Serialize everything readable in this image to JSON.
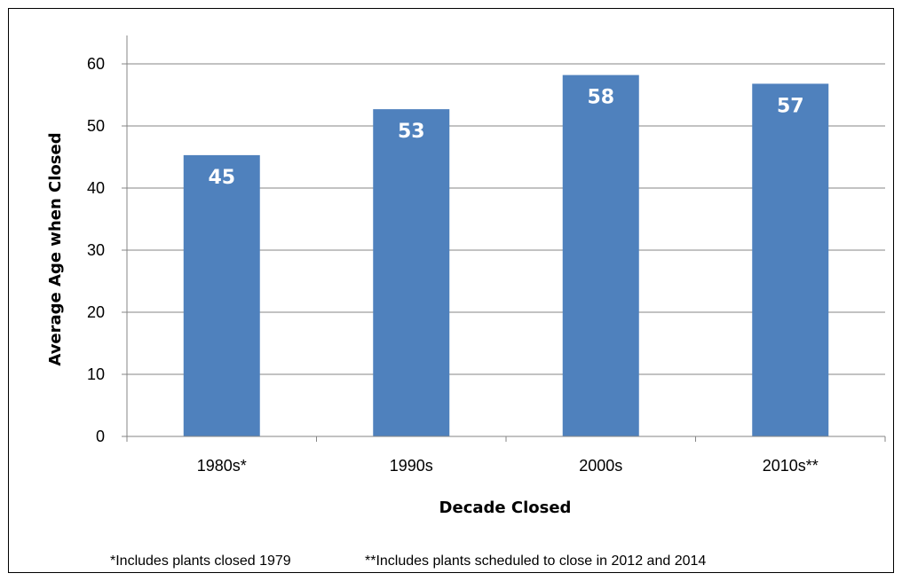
{
  "chart_data": {
    "type": "bar",
    "categories": [
      "1980s*",
      "1990s",
      "2000s",
      "2010s**"
    ],
    "values": [
      45.3,
      52.7,
      58.2,
      56.8
    ],
    "data_labels": [
      "45",
      "53",
      "58",
      "57"
    ],
    "xlabel": "Decade Closed",
    "ylabel": "Average Age when Closed",
    "ylim": [
      0,
      60
    ],
    "yticks": [
      0,
      10,
      20,
      30,
      40,
      50,
      60
    ],
    "grid": true,
    "bar_color": "#4F81BD"
  },
  "footnotes": {
    "note1": "*Includes plants closed 1979",
    "note2": "**Includes plants scheduled to close in 2012 and 2014"
  }
}
